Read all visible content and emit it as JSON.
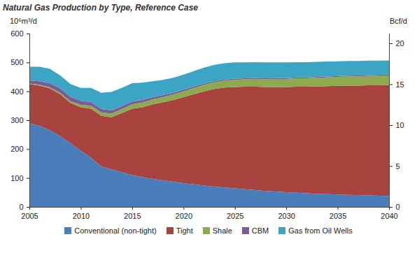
{
  "chart_data": {
    "type": "area",
    "stacked": true,
    "title": "Natural Gas Production by Type, Reference Case",
    "y_label": "10⁶m³/d",
    "y2_label": "Bcf/d",
    "legend": "bottom",
    "grid": false,
    "x": [
      2005,
      2006,
      2007,
      2008,
      2009,
      2010,
      2011,
      2012,
      2013,
      2014,
      2015,
      2016,
      2017,
      2018,
      2019,
      2020,
      2021,
      2022,
      2023,
      2024,
      2025,
      2026,
      2027,
      2028,
      2029,
      2030,
      2031,
      2032,
      2033,
      2034,
      2035,
      2036,
      2037,
      2038,
      2039,
      2040
    ],
    "xlim": [
      2005,
      2040
    ],
    "xticks": [
      2005,
      2010,
      2015,
      2020,
      2025,
      2030,
      2035,
      2040
    ],
    "ylim": [
      0,
      600
    ],
    "yticks": [
      0,
      100,
      200,
      300,
      400,
      500,
      600
    ],
    "y2lim": [
      0,
      21.2
    ],
    "y2ticks": [
      0,
      5,
      10,
      15,
      20
    ],
    "series": [
      {
        "name": "Conventional (non-tight)",
        "color": "#4a7ebb",
        "values": [
          290,
          280,
          265,
          245,
          220,
          195,
          170,
          140,
          130,
          120,
          110,
          103,
          97,
          92,
          87,
          82,
          78,
          74,
          70,
          67,
          64,
          61,
          58,
          55,
          53,
          51,
          49,
          47,
          45,
          44,
          43,
          42,
          41,
          40,
          39,
          38
        ]
      },
      {
        "name": "Tight",
        "color": "#a8433f",
        "values": [
          135,
          140,
          145,
          145,
          140,
          150,
          170,
          175,
          180,
          205,
          230,
          242,
          258,
          270,
          283,
          298,
          312,
          326,
          338,
          346,
          351,
          355,
          358,
          360,
          362,
          364,
          367,
          369,
          372,
          374,
          376,
          378,
          379,
          381,
          382,
          384
        ]
      },
      {
        "name": "Shale",
        "color": "#8cab4e",
        "values": [
          2,
          3,
          4,
          5,
          6,
          8,
          10,
          12,
          13,
          14,
          15,
          16,
          17,
          18,
          19,
          20,
          21,
          22,
          23,
          24,
          25,
          26,
          27,
          27,
          28,
          28,
          29,
          29,
          30,
          30,
          31,
          31,
          32,
          32,
          33,
          33
        ]
      },
      {
        "name": "CBM",
        "color": "#7a5c99",
        "values": [
          10,
          12,
          14,
          15,
          15,
          14,
          13,
          12,
          11,
          10,
          10,
          9,
          8,
          7,
          6,
          6,
          5,
          5,
          4,
          4,
          4,
          3,
          3,
          3,
          3,
          3,
          3,
          3,
          3,
          3,
          3,
          3,
          3,
          3,
          3,
          3
        ]
      },
      {
        "name": "Gas from Oil Wells",
        "color": "#3ca5c4",
        "values": [
          48,
          50,
          50,
          45,
          44,
          45,
          49,
          56,
          64,
          63,
          63,
          60,
          55,
          53,
          52,
          52,
          54,
          55,
          57,
          56,
          56,
          55,
          55,
          55,
          54,
          54,
          53,
          53,
          52,
          52,
          51,
          51,
          50,
          50,
          49,
          49
        ]
      }
    ]
  }
}
